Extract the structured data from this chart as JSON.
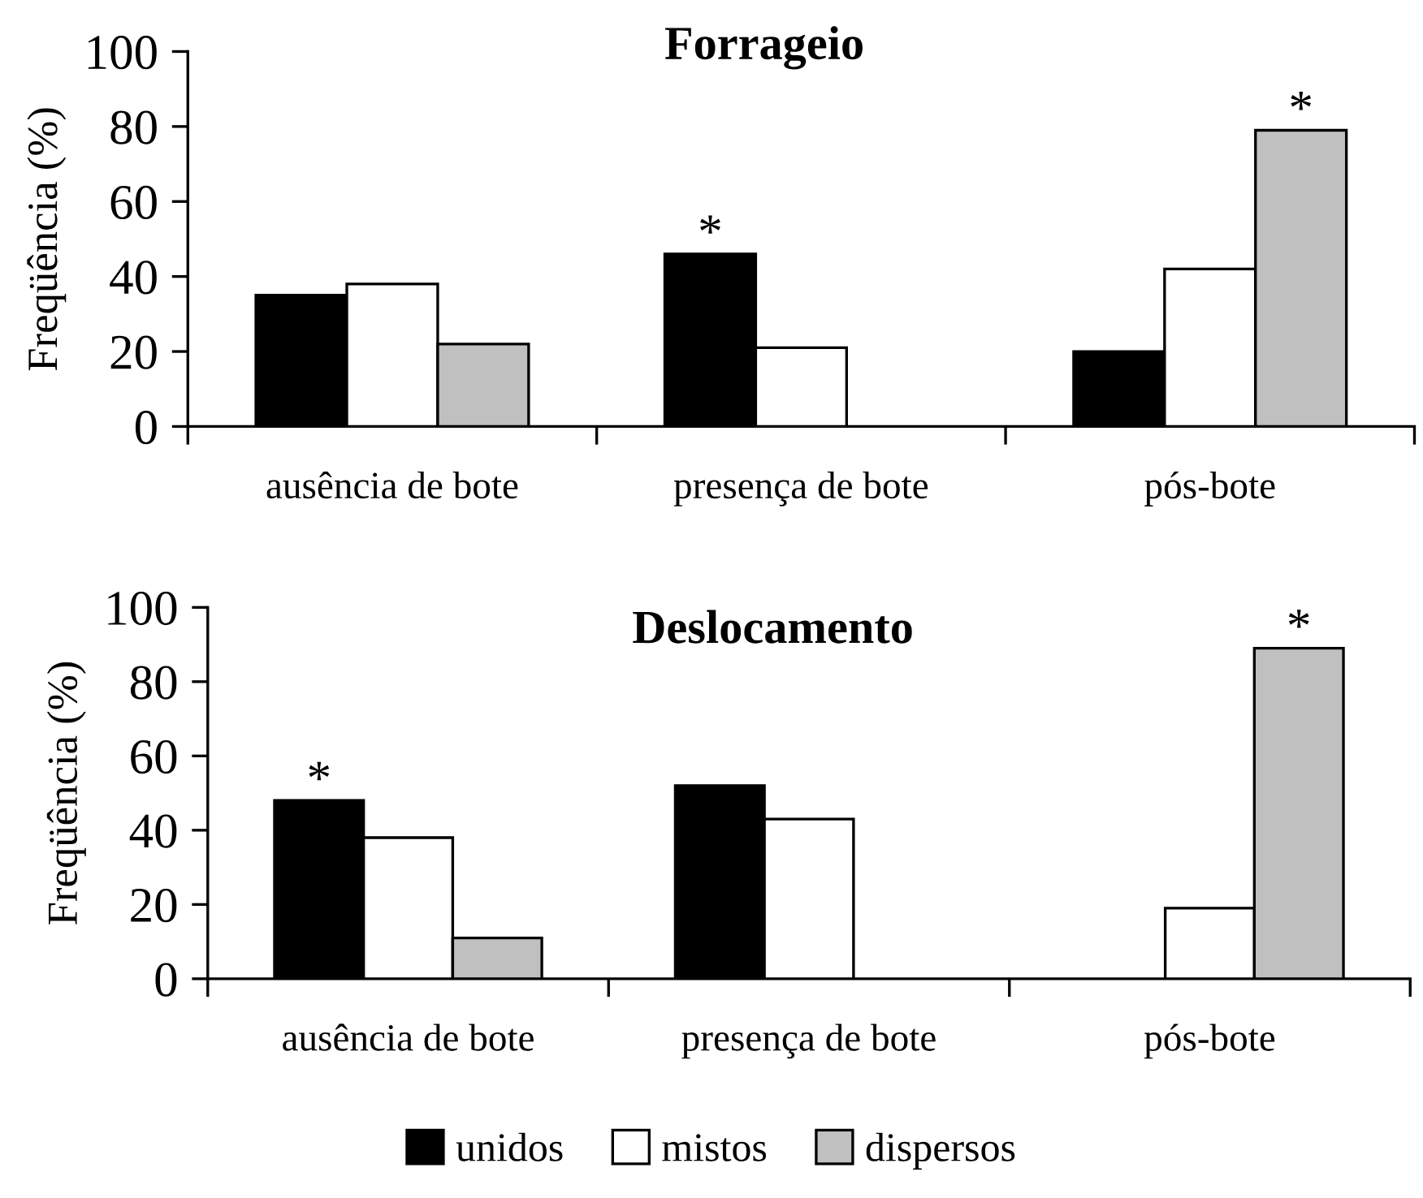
{
  "chart_data": [
    {
      "type": "bar",
      "title": "Forrageio",
      "ylabel": "Freqüência (%)",
      "categories": [
        "ausência de bote",
        "presença de bote",
        "pós-bote"
      ],
      "series": [
        {
          "name": "unidos",
          "color": "#000000",
          "values": [
            35,
            46,
            20
          ],
          "value_labels": [
            null,
            "*",
            null
          ]
        },
        {
          "name": "mistos",
          "color": "#ffffff",
          "values": [
            38,
            21,
            42
          ],
          "value_labels": [
            null,
            null,
            null
          ]
        },
        {
          "name": "dispersos",
          "color": "#c0c0c0",
          "values": [
            22,
            null,
            79
          ],
          "value_labels": [
            null,
            null,
            "*"
          ]
        }
      ],
      "ylim": [
        0,
        100
      ],
      "yticks": [
        0,
        20,
        40,
        60,
        80,
        100
      ],
      "legend": "bottom"
    },
    {
      "type": "bar",
      "title": "Deslocamento",
      "ylabel": "Freqüência (%)",
      "categories": [
        "ausência de bote",
        "presença de bote",
        "pós-bote"
      ],
      "series": [
        {
          "color": "#000000",
          "values": [
            48,
            52,
            null
          ],
          "value_labels": [
            "*",
            null,
            null
          ]
        },
        {
          "color": "#ffffff",
          "values": [
            38,
            43,
            19
          ],
          "value_labels": [
            null,
            null,
            null
          ]
        },
        {
          "color": "#c0c0c0",
          "values": [
            11,
            null,
            89
          ],
          "value_labels": [
            null,
            null,
            "*"
          ]
        }
      ],
      "ylim": [
        0,
        100
      ],
      "yticks": [
        0,
        20,
        40,
        60,
        80,
        100
      ]
    }
  ]
}
